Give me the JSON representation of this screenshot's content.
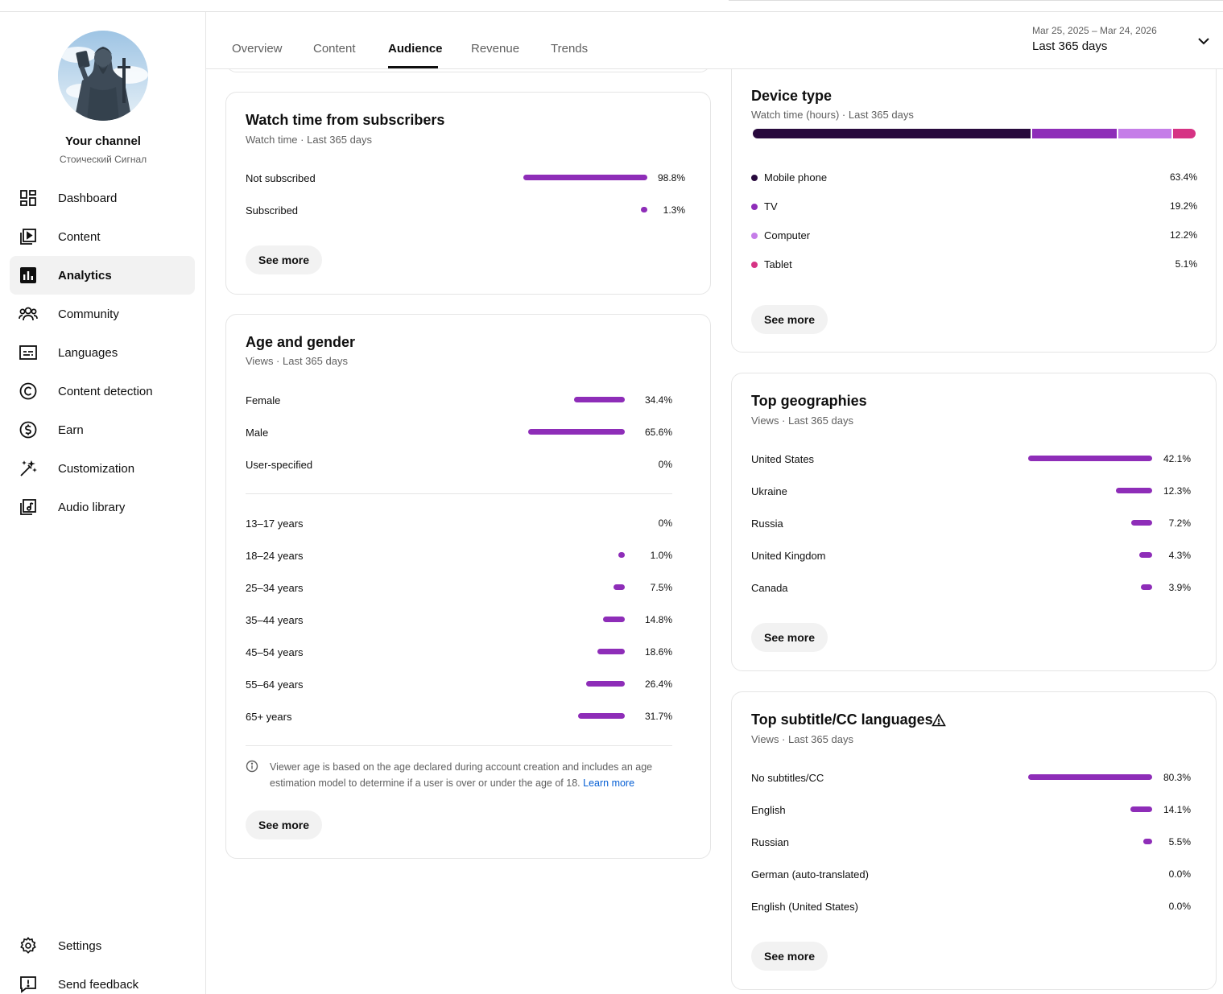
{
  "sidebar": {
    "channel_title": "Your channel",
    "channel_name": "Стоический Сигнал",
    "items": [
      {
        "label": "Dashboard",
        "icon": "dashboard-icon"
      },
      {
        "label": "Content",
        "icon": "content-icon"
      },
      {
        "label": "Analytics",
        "icon": "analytics-icon",
        "active": true
      },
      {
        "label": "Community",
        "icon": "community-icon"
      },
      {
        "label": "Languages",
        "icon": "subtitles-icon"
      },
      {
        "label": "Content detection",
        "icon": "copyright-icon"
      },
      {
        "label": "Earn",
        "icon": "dollar-icon"
      },
      {
        "label": "Customization",
        "icon": "magic-wand-icon"
      },
      {
        "label": "Audio library",
        "icon": "audio-library-icon"
      }
    ],
    "bottom_items": [
      {
        "label": "Settings",
        "icon": "gear-icon"
      },
      {
        "label": "Send feedback",
        "icon": "feedback-icon"
      }
    ]
  },
  "header": {
    "tabs": [
      "Overview",
      "Content",
      "Audience",
      "Revenue",
      "Trends"
    ],
    "active_tab": "Audience",
    "date_range": "Mar 25, 2025 – Mar 24, 2026",
    "date_label": "Last 365 days"
  },
  "accent_color": "#8e2db8",
  "watch_time_subscribers": {
    "title": "Watch time from subscribers",
    "subtitle": "Watch time · Last 365 days",
    "rows": [
      {
        "label": "Not subscribed",
        "value": "98.8%",
        "pct": 98.8
      },
      {
        "label": "Subscribed",
        "value": "1.3%",
        "pct": 1.3
      }
    ],
    "see_more": "See more"
  },
  "age_gender": {
    "title": "Age and gender",
    "subtitle": "Views · Last 365 days",
    "gender_rows": [
      {
        "label": "Female",
        "value": "34.4%",
        "pct": 34.4
      },
      {
        "label": "Male",
        "value": "65.6%",
        "pct": 65.6
      },
      {
        "label": "User-specified",
        "value": "0%",
        "pct": 0
      }
    ],
    "age_rows": [
      {
        "label": "13–17 years",
        "value": "0%",
        "pct": 0
      },
      {
        "label": "18–24 years",
        "value": "1.0%",
        "pct": 1.0
      },
      {
        "label": "25–34 years",
        "value": "7.5%",
        "pct": 7.5
      },
      {
        "label": "35–44 years",
        "value": "14.8%",
        "pct": 14.8
      },
      {
        "label": "45–54 years",
        "value": "18.6%",
        "pct": 18.6
      },
      {
        "label": "55–64 years",
        "value": "26.4%",
        "pct": 26.4
      },
      {
        "label": "65+ years",
        "value": "31.7%",
        "pct": 31.7
      }
    ],
    "note": "Viewer age is based on the age declared during account creation and includes an age estimation model to determine if a user is over or under the age of 18.",
    "note_link": "Learn more",
    "see_more": "See more"
  },
  "device_type": {
    "title": "Device type",
    "subtitle": "Watch time (hours) · Last 365 days",
    "rows": [
      {
        "label": "Mobile phone",
        "value": "63.4%",
        "pct": 63.4,
        "color": "#28093d"
      },
      {
        "label": "TV",
        "value": "19.2%",
        "pct": 19.2,
        "color": "#8e2db8"
      },
      {
        "label": "Computer",
        "value": "12.2%",
        "pct": 12.2,
        "color": "#c57de8"
      },
      {
        "label": "Tablet",
        "value": "5.1%",
        "pct": 5.1,
        "color": "#d63384"
      }
    ],
    "see_more": "See more"
  },
  "top_geographies": {
    "title": "Top geographies",
    "subtitle": "Views · Last 365 days",
    "rows": [
      {
        "label": "United States",
        "value": "42.1%",
        "pct": 42.1
      },
      {
        "label": "Ukraine",
        "value": "12.3%",
        "pct": 12.3
      },
      {
        "label": "Russia",
        "value": "7.2%",
        "pct": 7.2
      },
      {
        "label": "United Kingdom",
        "value": "4.3%",
        "pct": 4.3
      },
      {
        "label": "Canada",
        "value": "3.9%",
        "pct": 3.9
      }
    ],
    "see_more": "See more"
  },
  "subtitle_languages": {
    "title": "Top subtitle/CC languages",
    "subtitle": "Views · Last 365 days",
    "rows": [
      {
        "label": "No subtitles/CC",
        "value": "80.3%",
        "pct": 80.3
      },
      {
        "label": "English",
        "value": "14.1%",
        "pct": 14.1
      },
      {
        "label": "Russian",
        "value": "5.5%",
        "pct": 5.5
      },
      {
        "label": "German (auto-translated)",
        "value": "0.0%",
        "pct": 0.0
      },
      {
        "label": "English (United States)",
        "value": "0.0%",
        "pct": 0.0
      }
    ],
    "see_more": "See more"
  }
}
